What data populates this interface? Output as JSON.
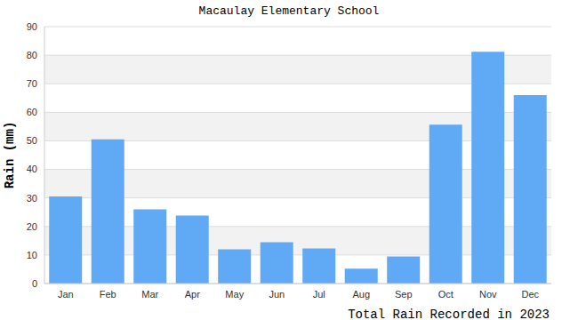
{
  "chart_data": {
    "type": "bar",
    "title": "Macaulay Elementary School",
    "y_label": "Rain (mm)",
    "x_label": "Total Rain Recorded in 2023",
    "categories": [
      "Jan",
      "Feb",
      "Mar",
      "Apr",
      "May",
      "Jun",
      "Jul",
      "Aug",
      "Sep",
      "Oct",
      "Nov",
      "Dec"
    ],
    "values": [
      30.5,
      50.5,
      26,
      23.8,
      12,
      14.5,
      12.3,
      5.2,
      9.5,
      55.7,
      81.2,
      66
    ],
    "color": "#60a9f5",
    "ylim": [
      0,
      90
    ],
    "yticks": [
      0,
      10,
      20,
      30,
      40,
      50,
      60,
      70,
      80,
      90
    ],
    "grid": true
  }
}
